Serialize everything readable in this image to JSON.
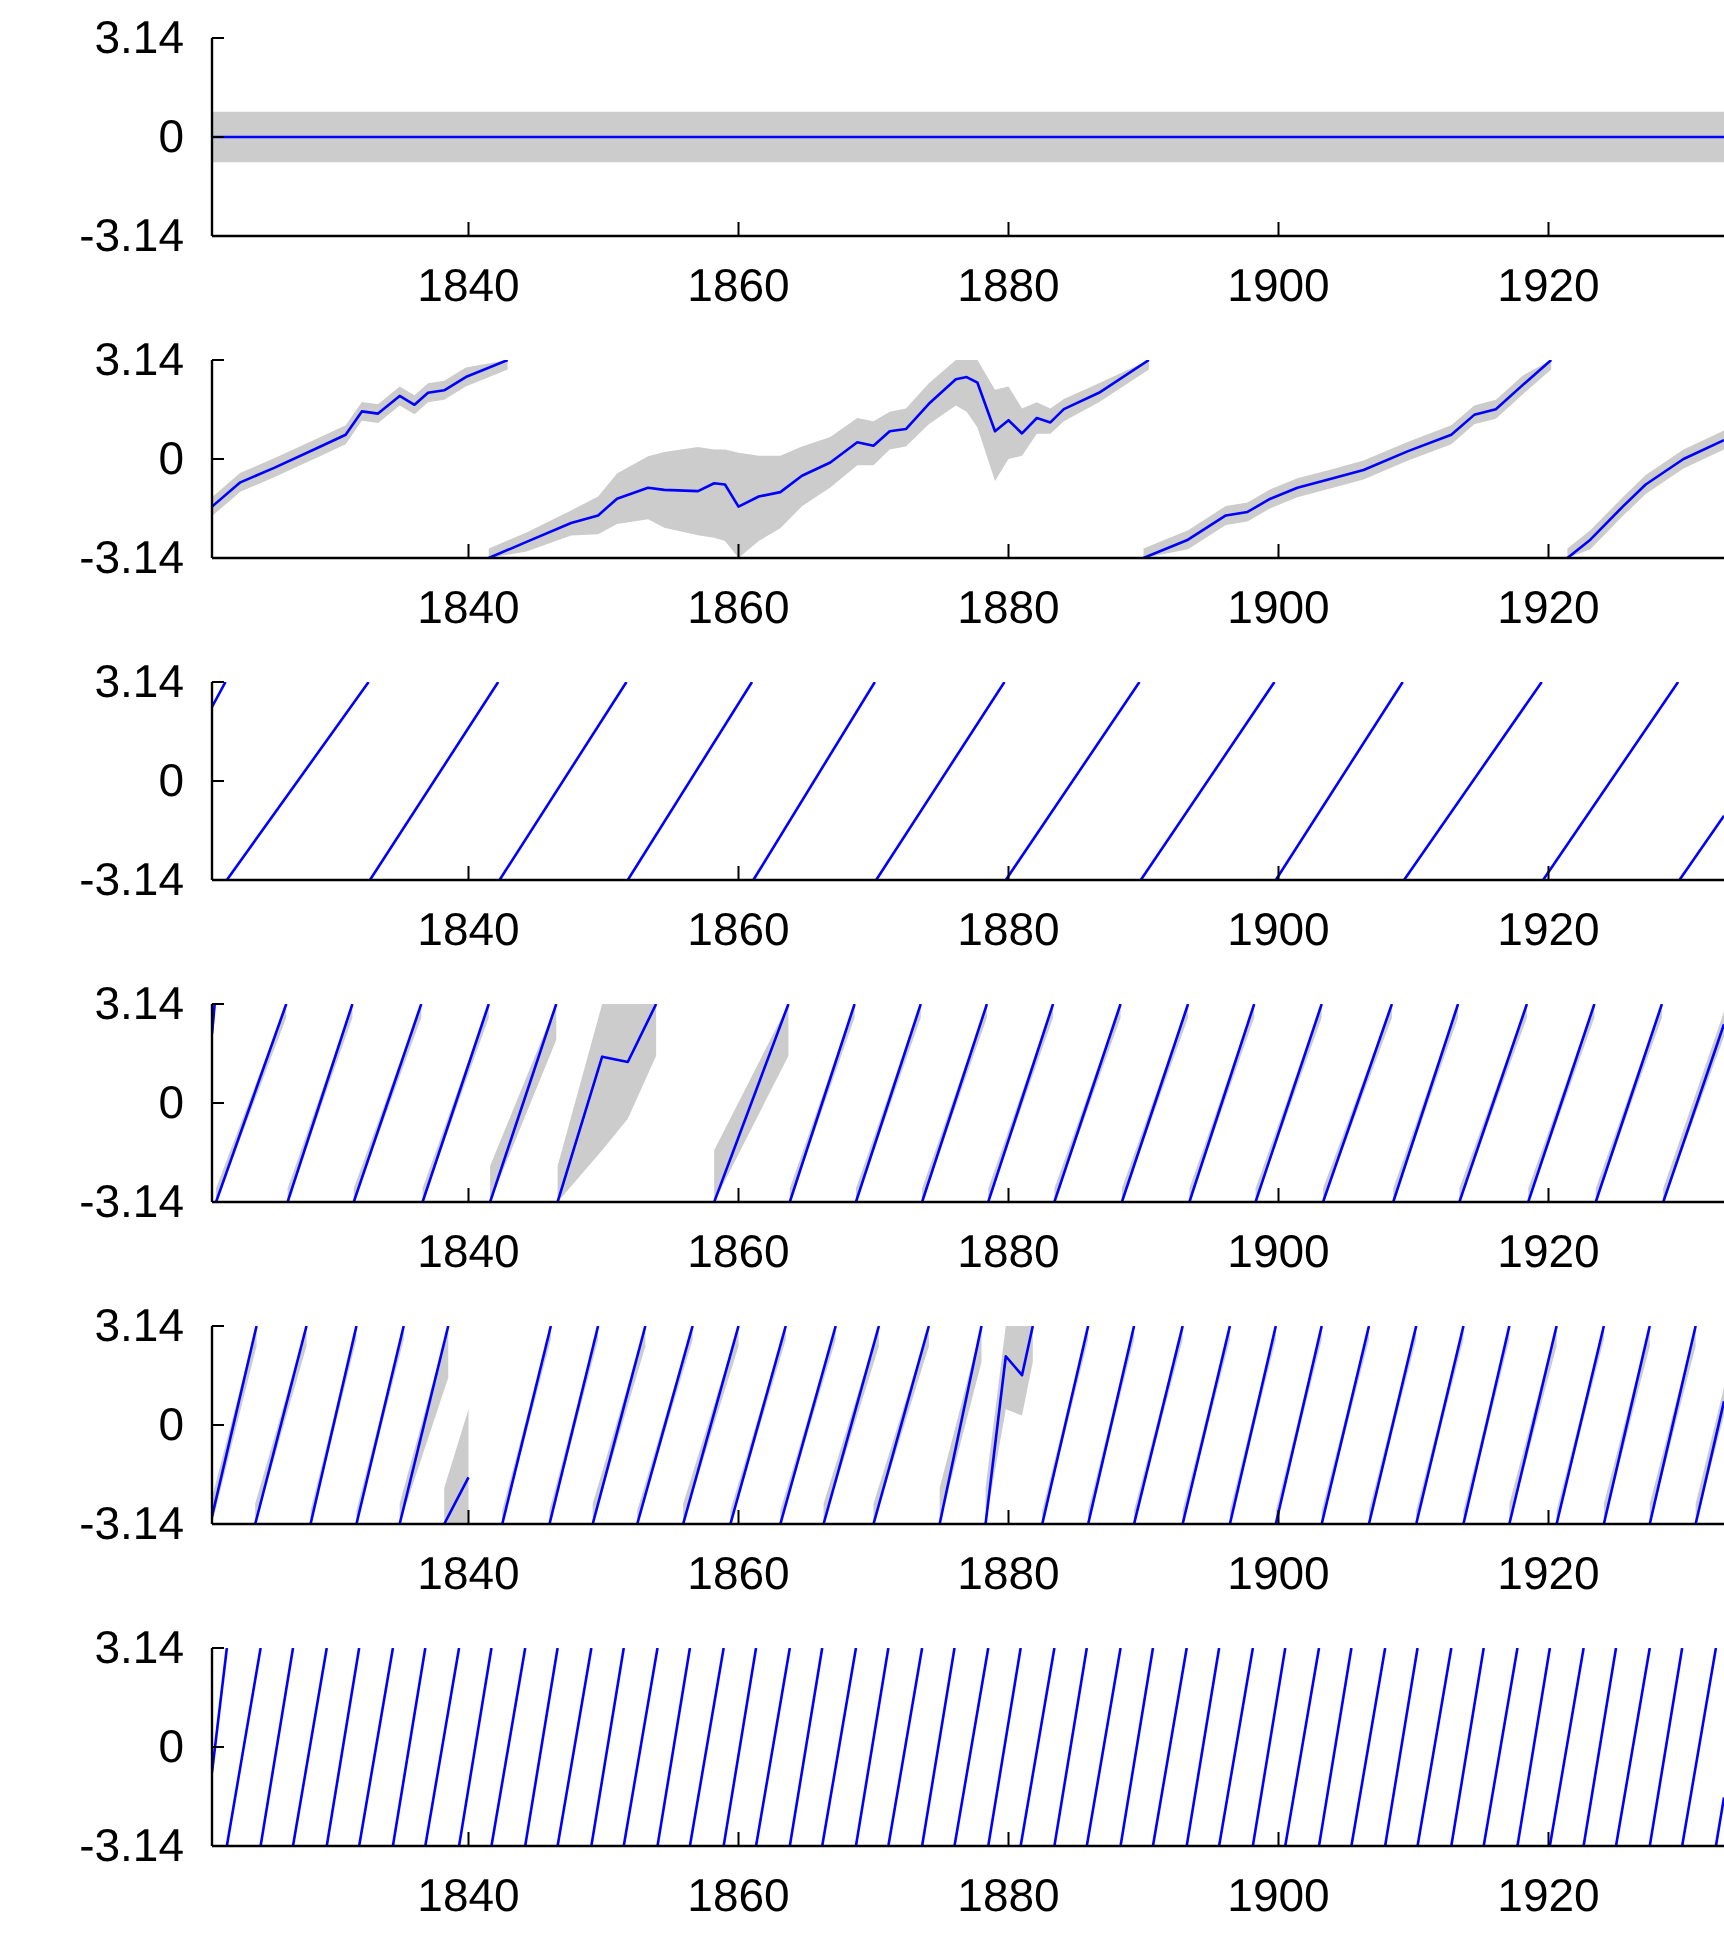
{
  "chart_data": [
    {
      "type": "line",
      "xlim": [
        1821,
        1933
      ],
      "xticks": [
        1840,
        1860,
        1880,
        1900,
        1920
      ],
      "ylim": [
        -3.14,
        3.14
      ],
      "yticks": [
        -3.14,
        0,
        3.14
      ],
      "series": [
        {
          "color": "#0000ff",
          "x": [
            1821,
            1933
          ],
          "values": [
            0,
            0
          ],
          "lower": [
            -0.8,
            -0.8
          ],
          "upper": [
            0.8,
            0.8
          ]
        }
      ]
    },
    {
      "type": "line",
      "xlim": [
        1821,
        1933
      ],
      "xticks": [
        1840,
        1860,
        1880,
        1900,
        1920
      ],
      "ylim": [
        -3.14,
        3.14
      ],
      "yticks": [
        -3.14,
        0,
        3.14
      ],
      "series": [
        {
          "color": "#0000ff",
          "x": [
            1821,
            1823.1,
            1825.6,
            1828.8,
            1830.9,
            1832.1,
            1833.3,
            1834.9,
            1836,
            1837,
            1838.2,
            1839.8,
            1842.9
          ],
          "values": [
            -1.51,
            -0.74,
            -0.28,
            0.35,
            0.77,
            1.51,
            1.44,
            2.0,
            1.72,
            2.1,
            2.18,
            2.6,
            3.14
          ],
          "lower": [
            -1.81,
            -1.04,
            -0.58,
            0.05,
            0.47,
            1.21,
            1.14,
            1.7,
            1.42,
            1.8,
            1.88,
            2.3,
            2.84
          ],
          "upper": [
            -1.21,
            -0.44,
            0.02,
            0.65,
            1.07,
            1.81,
            1.74,
            2.3,
            2.02,
            2.4,
            2.48,
            2.9,
            3.14
          ]
        },
        {
          "color": "#0000ff",
          "x": [
            1841.5,
            1844.3,
            1847.6,
            1849.6,
            1851.0,
            1853.3,
            1854.5,
            1857.0,
            1858.2,
            1859.0,
            1860.0,
            1861.5,
            1863.1,
            1864.7,
            1866.8,
            1868.8,
            1870.0,
            1871.2,
            1872.4,
            1874.1,
            1876.1,
            1876.9,
            1877.7,
            1879.0,
            1880.0,
            1881.0,
            1882.1,
            1883.1,
            1884.1,
            1886.7,
            1890.4
          ],
          "values": [
            -3.14,
            -2.63,
            -2.03,
            -1.79,
            -1.26,
            -0.91,
            -0.98,
            -1.02,
            -0.77,
            -0.81,
            -1.51,
            -1.19,
            -1.05,
            -0.53,
            -0.11,
            0.53,
            0.42,
            0.88,
            0.95,
            1.75,
            2.53,
            2.6,
            2.42,
            0.88,
            1.23,
            0.81,
            1.3,
            1.16,
            1.58,
            2.1,
            3.14
          ],
          "lower": [
            -3.14,
            -2.93,
            -2.43,
            -2.39,
            -2.06,
            -1.91,
            -2.18,
            -2.42,
            -2.5,
            -2.6,
            -3.14,
            -2.6,
            -2.2,
            -1.5,
            -0.9,
            -0.2,
            -0.2,
            0.3,
            0.4,
            1.1,
            1.7,
            1.5,
            1.0,
            -0.7,
            0.0,
            0.1,
            0.8,
            0.8,
            1.2,
            1.8,
            2.84
          ],
          "upper": [
            -2.84,
            -2.33,
            -1.63,
            -1.19,
            -0.46,
            0.09,
            0.22,
            0.38,
            0.3,
            0.3,
            0.2,
            0.1,
            0.1,
            0.4,
            0.7,
            1.3,
            1.2,
            1.5,
            1.6,
            2.4,
            3.14,
            3.14,
            3.14,
            2.2,
            2.3,
            1.6,
            1.8,
            1.6,
            1.9,
            2.4,
            3.14
          ]
        },
        {
          "color": "#0000ff",
          "x": [
            1890.0,
            1893.3,
            1896.1,
            1897.7,
            1899.4,
            1901.4,
            1903.9,
            1906.3,
            1909.6,
            1912.8,
            1914.5,
            1916.1,
            1918.1,
            1920.2
          ],
          "values": [
            -3.14,
            -2.56,
            -1.79,
            -1.68,
            -1.26,
            -0.91,
            -0.63,
            -0.35,
            0.25,
            0.77,
            1.4,
            1.58,
            2.35,
            3.14
          ],
          "lower": [
            -3.14,
            -2.86,
            -2.09,
            -1.98,
            -1.56,
            -1.21,
            -0.93,
            -0.65,
            -0.05,
            0.47,
            1.1,
            1.28,
            2.05,
            2.84
          ],
          "upper": [
            -2.84,
            -2.26,
            -1.49,
            -1.38,
            -0.96,
            -0.61,
            -0.33,
            -0.05,
            0.55,
            1.07,
            1.7,
            1.88,
            2.65,
            3.14
          ]
        },
        {
          "color": "#0000ff",
          "x": [
            1921.4,
            1923.1,
            1925.5,
            1927.2,
            1930.0,
            1933
          ],
          "values": [
            -3.14,
            -2.56,
            -1.51,
            -0.81,
            0,
            0.6
          ],
          "lower": [
            -3.14,
            -2.86,
            -1.81,
            -1.11,
            -0.3,
            0.3
          ],
          "upper": [
            -2.84,
            -2.26,
            -1.21,
            -0.51,
            0.3,
            0.9
          ]
        }
      ]
    },
    {
      "type": "line",
      "xlim": [
        1821,
        1933
      ],
      "xticks": [
        1840,
        1860,
        1880,
        1900,
        1920
      ],
      "ylim": [
        -3.14,
        3.14
      ],
      "yticks": [
        -3.14,
        0,
        3.14
      ],
      "series": [
        {
          "color": "#0000ff",
          "x": [
            1821,
            1822.0
          ],
          "values": [
            2.35,
            3.14
          ]
        },
        {
          "color": "#0000ff",
          "x": [
            1822.1,
            1832.6
          ],
          "values": [
            -3.14,
            3.14
          ]
        },
        {
          "color": "#0000ff",
          "x": [
            1832.7,
            1842.2
          ],
          "values": [
            -3.14,
            3.14
          ]
        },
        {
          "color": "#0000ff",
          "x": [
            1842.3,
            1851.7
          ],
          "values": [
            -3.14,
            3.14
          ]
        },
        {
          "color": "#0000ff",
          "x": [
            1851.8,
            1861.0
          ],
          "values": [
            -3.14,
            3.14
          ]
        },
        {
          "color": "#0000ff",
          "x": [
            1861.1,
            1870.1
          ],
          "values": [
            -3.14,
            3.14
          ]
        },
        {
          "color": "#0000ff",
          "x": [
            1870.2,
            1879.7
          ],
          "values": [
            -3.14,
            3.14
          ]
        },
        {
          "color": "#0000ff",
          "x": [
            1879.8,
            1889.7
          ],
          "values": [
            -3.14,
            3.14
          ]
        },
        {
          "color": "#0000ff",
          "x": [
            1889.8,
            1899.7
          ],
          "values": [
            -3.14,
            3.14
          ]
        },
        {
          "color": "#0000ff",
          "x": [
            1899.8,
            1909.2
          ],
          "values": [
            -3.14,
            3.14
          ]
        },
        {
          "color": "#0000ff",
          "x": [
            1909.3,
            1919.5
          ],
          "values": [
            -3.14,
            3.14
          ]
        },
        {
          "color": "#0000ff",
          "x": [
            1919.6,
            1929.6
          ],
          "values": [
            -3.14,
            3.14
          ]
        },
        {
          "color": "#0000ff",
          "x": [
            1929.7,
            1933
          ],
          "values": [
            -3.14,
            -1.1
          ]
        }
      ]
    },
    {
      "type": "line",
      "xlim": [
        1821,
        1933
      ],
      "xticks": [
        1840,
        1860,
        1880,
        1900,
        1920
      ],
      "ylim": [
        -3.14,
        3.14
      ],
      "yticks": [
        -3.14,
        0,
        3.14
      ],
      "series": [
        {
          "color": "#0000ff",
          "x": [
            1821,
            1821.2
          ],
          "values": [
            2.2,
            3.14
          ],
          "lower": [
            1.8,
            2.7
          ],
          "upper": [
            3.14,
            3.14
          ]
        },
        {
          "color": "#0000ff",
          "x": [
            1821.3,
            1826.5
          ],
          "values": [
            -3.14,
            3.14
          ],
          "lower": [
            -3.14,
            2.7
          ],
          "upper": [
            -2.7,
            3.14
          ]
        },
        {
          "color": "#0000ff",
          "x": [
            1826.6,
            1831.4
          ],
          "values": [
            -3.14,
            3.14
          ],
          "lower": [
            -3.14,
            2.7
          ],
          "upper": [
            -2.7,
            3.14
          ]
        },
        {
          "color": "#0000ff",
          "x": [
            1831.5,
            1836.5
          ],
          "values": [
            -3.14,
            3.14
          ],
          "lower": [
            -3.14,
            2.7
          ],
          "upper": [
            -2.7,
            3.14
          ]
        },
        {
          "color": "#0000ff",
          "x": [
            1836.6,
            1841.5
          ],
          "values": [
            -3.14,
            3.14
          ],
          "lower": [
            -3.14,
            2.7
          ],
          "upper": [
            -2.7,
            3.14
          ]
        },
        {
          "color": "#0000ff",
          "x": [
            1841.6,
            1846.5
          ],
          "values": [
            -3.14,
            3.14
          ],
          "lower": [
            -3.14,
            2.0
          ],
          "upper": [
            -2.0,
            3.14
          ]
        },
        {
          "color": "#0000ff",
          "x": [
            1846.6,
            1849.9,
            1851.8,
            1853.9
          ],
          "values": [
            -3.14,
            1.47,
            1.3,
            3.14
          ],
          "lower": [
            -3.14,
            -1.5,
            -0.5,
            1.5
          ],
          "upper": [
            -2.0,
            3.14,
            3.14,
            3.14
          ]
        },
        {
          "color": "#0000ff",
          "x": [
            1858.2,
            1863.7
          ],
          "values": [
            -3.14,
            3.14
          ],
          "lower": [
            -3.14,
            1.5
          ],
          "upper": [
            -1.5,
            3.14
          ]
        },
        {
          "color": "#0000ff",
          "x": [
            1863.8,
            1868.6
          ],
          "values": [
            -3.14,
            3.14
          ],
          "lower": [
            -3.14,
            2.7
          ],
          "upper": [
            -2.7,
            3.14
          ]
        },
        {
          "color": "#0000ff",
          "x": [
            1868.7,
            1873.5
          ],
          "values": [
            -3.14,
            3.14
          ],
          "lower": [
            -3.14,
            2.7
          ],
          "upper": [
            -2.7,
            3.14
          ]
        },
        {
          "color": "#0000ff",
          "x": [
            1873.6,
            1878.4
          ],
          "values": [
            -3.14,
            3.14
          ],
          "lower": [
            -3.14,
            2.7
          ],
          "upper": [
            -2.7,
            3.14
          ]
        },
        {
          "color": "#0000ff",
          "x": [
            1878.5,
            1883.3
          ],
          "values": [
            -3.14,
            3.14
          ],
          "lower": [
            -3.14,
            2.7
          ],
          "upper": [
            -2.7,
            3.14
          ]
        },
        {
          "color": "#0000ff",
          "x": [
            1883.4,
            1888.3
          ],
          "values": [
            -3.14,
            3.14
          ],
          "lower": [
            -3.14,
            2.7
          ],
          "upper": [
            -2.7,
            3.14
          ]
        },
        {
          "color": "#0000ff",
          "x": [
            1888.4,
            1893.3
          ],
          "values": [
            -3.14,
            3.14
          ],
          "lower": [
            -3.14,
            2.7
          ],
          "upper": [
            -2.7,
            3.14
          ]
        },
        {
          "color": "#0000ff",
          "x": [
            1893.4,
            1898.2
          ],
          "values": [
            -3.14,
            3.14
          ],
          "lower": [
            -3.14,
            2.7
          ],
          "upper": [
            -2.7,
            3.14
          ]
        },
        {
          "color": "#0000ff",
          "x": [
            1898.3,
            1903.2
          ],
          "values": [
            -3.14,
            3.14
          ],
          "lower": [
            -3.14,
            2.7
          ],
          "upper": [
            -2.7,
            3.14
          ]
        },
        {
          "color": "#0000ff",
          "x": [
            1903.3,
            1908.4
          ],
          "values": [
            -3.14,
            3.14
          ],
          "lower": [
            -3.14,
            2.7
          ],
          "upper": [
            -2.7,
            3.14
          ]
        },
        {
          "color": "#0000ff",
          "x": [
            1908.5,
            1913.3
          ],
          "values": [
            -3.14,
            3.14
          ],
          "lower": [
            -3.14,
            2.7
          ],
          "upper": [
            -2.7,
            3.14
          ]
        },
        {
          "color": "#0000ff",
          "x": [
            1913.4,
            1918.4
          ],
          "values": [
            -3.14,
            3.14
          ],
          "lower": [
            -3.14,
            2.7
          ],
          "upper": [
            -2.7,
            3.14
          ]
        },
        {
          "color": "#0000ff",
          "x": [
            1918.5,
            1923.4
          ],
          "values": [
            -3.14,
            3.14
          ],
          "lower": [
            -3.14,
            2.7
          ],
          "upper": [
            -2.7,
            3.14
          ]
        },
        {
          "color": "#0000ff",
          "x": [
            1923.5,
            1928.4
          ],
          "values": [
            -3.14,
            3.14
          ],
          "lower": [
            -3.14,
            2.7
          ],
          "upper": [
            -2.7,
            3.14
          ]
        },
        {
          "color": "#0000ff",
          "x": [
            1928.5,
            1933
          ],
          "values": [
            -3.14,
            2.5
          ],
          "lower": [
            -3.14,
            2.1
          ],
          "upper": [
            -2.7,
            2.9
          ]
        }
      ]
    },
    {
      "type": "line",
      "xlim": [
        1821,
        1933
      ],
      "xticks": [
        1840,
        1860,
        1880,
        1900,
        1920
      ],
      "ylim": [
        -3.14,
        3.14
      ],
      "yticks": [
        -3.14,
        0,
        3.14
      ],
      "series": [
        {
          "color": "#0000ff",
          "x": [
            1821,
            1824.3
          ],
          "values": [
            -2.9,
            3.14
          ],
          "lower": [
            -3.14,
            2.5
          ],
          "upper": [
            -2.3,
            3.14
          ]
        },
        {
          "color": "#0000ff",
          "x": [
            1824.2,
            1828.0
          ],
          "values": [
            -3.14,
            3.14
          ],
          "lower": [
            -3.14,
            2.5
          ],
          "upper": [
            -2.5,
            3.14
          ]
        },
        {
          "color": "#0000ff",
          "x": [
            1828.3,
            1831.7
          ],
          "values": [
            -3.14,
            3.14
          ],
          "lower": [
            -3.14,
            2.7
          ],
          "upper": [
            -2.7,
            3.14
          ]
        },
        {
          "color": "#0000ff",
          "x": [
            1831.7,
            1835.2
          ],
          "values": [
            -3.14,
            3.14
          ],
          "lower": [
            -3.14,
            2.7
          ],
          "upper": [
            -2.7,
            3.14
          ]
        },
        {
          "color": "#0000ff",
          "x": [
            1834.9,
            1838.5
          ],
          "values": [
            -3.14,
            3.14
          ],
          "lower": [
            -3.14,
            1.5
          ],
          "upper": [
            -2.5,
            3.14
          ]
        },
        {
          "color": "#0000ff",
          "x": [
            1838.2,
            1840.0
          ],
          "values": [
            -3.14,
            -1.66
          ],
          "lower": [
            -3.14,
            -3.14
          ],
          "upper": [
            -2.0,
            0.5
          ]
        },
        {
          "color": "#0000ff",
          "x": [
            1842.5,
            1846.1
          ],
          "values": [
            -3.14,
            3.14
          ],
          "lower": [
            -3.14,
            2.7
          ],
          "upper": [
            -2.7,
            3.14
          ]
        },
        {
          "color": "#0000ff",
          "x": [
            1846.0,
            1849.6
          ],
          "values": [
            -3.14,
            3.14
          ],
          "lower": [
            -3.14,
            2.7
          ],
          "upper": [
            -2.7,
            3.14
          ]
        },
        {
          "color": "#0000ff",
          "x": [
            1849.2,
            1853.1
          ],
          "values": [
            -3.14,
            3.14
          ],
          "lower": [
            -3.14,
            2.5
          ],
          "upper": [
            -2.5,
            3.14
          ]
        },
        {
          "color": "#0000ff",
          "x": [
            1852.5,
            1856.6
          ],
          "values": [
            -3.14,
            3.14
          ],
          "lower": [
            -3.14,
            2.7
          ],
          "upper": [
            -2.7,
            3.14
          ]
        },
        {
          "color": "#0000ff",
          "x": [
            1855.9,
            1860.0
          ],
          "values": [
            -3.14,
            3.14
          ],
          "lower": [
            -3.14,
            2.5
          ],
          "upper": [
            -2.5,
            3.14
          ]
        },
        {
          "color": "#0000ff",
          "x": [
            1859.4,
            1863.5
          ],
          "values": [
            -3.14,
            3.14
          ],
          "lower": [
            -3.14,
            2.7
          ],
          "upper": [
            -2.7,
            3.14
          ]
        },
        {
          "color": "#0000ff",
          "x": [
            1863.1,
            1867.2
          ],
          "values": [
            -3.14,
            3.14
          ],
          "lower": [
            -3.14,
            2.7
          ],
          "upper": [
            -2.7,
            3.14
          ]
        },
        {
          "color": "#0000ff",
          "x": [
            1866.3,
            1870.4
          ],
          "values": [
            -3.14,
            3.14
          ],
          "lower": [
            -3.14,
            2.5
          ],
          "upper": [
            -2.5,
            3.14
          ]
        },
        {
          "color": "#0000ff",
          "x": [
            1870.0,
            1874.1
          ],
          "values": [
            -3.14,
            3.14
          ],
          "lower": [
            -3.14,
            2.5
          ],
          "upper": [
            -2.5,
            3.14
          ]
        },
        {
          "color": "#0000ff",
          "x": [
            1874.9,
            1878.0
          ],
          "values": [
            -3.14,
            3.14
          ],
          "lower": [
            -3.14,
            2.0
          ],
          "upper": [
            -2.0,
            3.14
          ]
        },
        {
          "color": "#0000ff",
          "x": [
            1878.3,
            1879.8,
            1881.0,
            1881.8
          ],
          "values": [
            -3.14,
            2.18,
            1.58,
            3.14
          ],
          "lower": [
            -3.14,
            0.5,
            0.3,
            2.0
          ],
          "upper": [
            -2.0,
            3.14,
            3.14,
            3.14
          ]
        },
        {
          "color": "#0000ff",
          "x": [
            1882.5,
            1885.9
          ],
          "values": [
            -3.14,
            3.14
          ],
          "lower": [
            -3.14,
            2.7
          ],
          "upper": [
            -2.7,
            3.14
          ]
        },
        {
          "color": "#0000ff",
          "x": [
            1885.9,
            1889.3
          ],
          "values": [
            -3.14,
            3.14
          ],
          "lower": [
            -3.14,
            2.7
          ],
          "upper": [
            -2.7,
            3.14
          ]
        },
        {
          "color": "#0000ff",
          "x": [
            1889.3,
            1892.9
          ],
          "values": [
            -3.14,
            3.14
          ],
          "lower": [
            -3.14,
            2.7
          ],
          "upper": [
            -2.7,
            3.14
          ]
        },
        {
          "color": "#0000ff",
          "x": [
            1892.9,
            1896.4
          ],
          "values": [
            -3.14,
            3.14
          ],
          "lower": [
            -3.14,
            2.7
          ],
          "upper": [
            -2.7,
            3.14
          ]
        },
        {
          "color": "#0000ff",
          "x": [
            1896.4,
            1899.8
          ],
          "values": [
            -3.14,
            3.14
          ],
          "lower": [
            -3.14,
            2.7
          ],
          "upper": [
            -2.7,
            3.14
          ]
        },
        {
          "color": "#0000ff",
          "x": [
            1899.8,
            1903.2
          ],
          "values": [
            -3.14,
            3.14
          ],
          "lower": [
            -3.14,
            2.7
          ],
          "upper": [
            -2.7,
            3.14
          ]
        },
        {
          "color": "#0000ff",
          "x": [
            1903.2,
            1906.7
          ],
          "values": [
            -3.14,
            3.14
          ],
          "lower": [
            -3.14,
            2.7
          ],
          "upper": [
            -2.7,
            3.14
          ]
        },
        {
          "color": "#0000ff",
          "x": [
            1906.7,
            1910.2
          ],
          "values": [
            -3.14,
            3.14
          ],
          "lower": [
            -3.14,
            2.7
          ],
          "upper": [
            -2.7,
            3.14
          ]
        },
        {
          "color": "#0000ff",
          "x": [
            1910.2,
            1913.7
          ],
          "values": [
            -3.14,
            3.14
          ],
          "lower": [
            -3.14,
            2.7
          ],
          "upper": [
            -2.7,
            3.14
          ]
        },
        {
          "color": "#0000ff",
          "x": [
            1913.7,
            1917.1
          ],
          "values": [
            -3.14,
            3.14
          ],
          "lower": [
            -3.14,
            2.7
          ],
          "upper": [
            -2.7,
            3.14
          ]
        },
        {
          "color": "#0000ff",
          "x": [
            1917.1,
            1920.6
          ],
          "values": [
            -3.14,
            3.14
          ],
          "lower": [
            -3.14,
            2.5
          ],
          "upper": [
            -2.5,
            3.14
          ]
        },
        {
          "color": "#0000ff",
          "x": [
            1920.6,
            1924.1
          ],
          "values": [
            -3.14,
            3.14
          ],
          "lower": [
            -3.14,
            2.7
          ],
          "upper": [
            -2.7,
            3.14
          ]
        },
        {
          "color": "#0000ff",
          "x": [
            1924.1,
            1927.5
          ],
          "values": [
            -3.14,
            3.14
          ],
          "lower": [
            -3.14,
            2.5
          ],
          "upper": [
            -2.5,
            3.14
          ]
        },
        {
          "color": "#0000ff",
          "x": [
            1927.5,
            1930.9
          ],
          "values": [
            -3.14,
            3.14
          ],
          "lower": [
            -3.14,
            2.5
          ],
          "upper": [
            -2.5,
            3.14
          ]
        },
        {
          "color": "#0000ff",
          "x": [
            1930.9,
            1933
          ],
          "values": [
            -3.14,
            0.75
          ],
          "lower": [
            -3.14,
            0.3
          ],
          "upper": [
            -2.5,
            1.2
          ]
        }
      ]
    },
    {
      "type": "line",
      "xlim": [
        1821,
        1933
      ],
      "xticks": [
        1840,
        1860,
        1880,
        1900,
        1920
      ],
      "ylim": [
        -3.14,
        3.14
      ],
      "yticks": [
        -3.14,
        0,
        3.14
      ],
      "series": [
        {
          "color": "#0000ff",
          "x": [
            1821,
            1822.1
          ],
          "values": [
            -0.8,
            3.14
          ]
        },
        {
          "color": "#0000ff",
          "x": [
            1822.1,
            1824.6
          ],
          "values": [
            -3.14,
            3.14
          ]
        },
        {
          "color": "#0000ff",
          "x": [
            1824.6,
            1827.0
          ],
          "values": [
            -3.14,
            3.14
          ]
        },
        {
          "color": "#0000ff",
          "x": [
            1827.0,
            1829.5
          ],
          "values": [
            -3.14,
            3.14
          ]
        },
        {
          "color": "#0000ff",
          "x": [
            1829.5,
            1831.9
          ],
          "values": [
            -3.14,
            3.14
          ]
        },
        {
          "color": "#0000ff",
          "x": [
            1831.9,
            1834.4
          ],
          "values": [
            -3.14,
            3.14
          ]
        },
        {
          "color": "#0000ff",
          "x": [
            1834.4,
            1836.8
          ],
          "values": [
            -3.14,
            3.14
          ]
        },
        {
          "color": "#0000ff",
          "x": [
            1836.8,
            1839.3
          ],
          "values": [
            -3.14,
            3.14
          ]
        },
        {
          "color": "#0000ff",
          "x": [
            1839.3,
            1841.7
          ],
          "values": [
            -3.14,
            3.14
          ]
        },
        {
          "color": "#0000ff",
          "x": [
            1841.7,
            1844.2
          ],
          "values": [
            -3.14,
            3.14
          ]
        },
        {
          "color": "#0000ff",
          "x": [
            1844.2,
            1846.6
          ],
          "values": [
            -3.14,
            3.14
          ]
        },
        {
          "color": "#0000ff",
          "x": [
            1846.6,
            1849.1
          ],
          "values": [
            -3.14,
            3.14
          ]
        },
        {
          "color": "#0000ff",
          "x": [
            1849.1,
            1851.5
          ],
          "values": [
            -3.14,
            3.14
          ]
        },
        {
          "color": "#0000ff",
          "x": [
            1851.5,
            1854.0
          ],
          "values": [
            -3.14,
            3.14
          ]
        },
        {
          "color": "#0000ff",
          "x": [
            1854.0,
            1856.4
          ],
          "values": [
            -3.14,
            3.14
          ]
        },
        {
          "color": "#0000ff",
          "x": [
            1856.4,
            1858.9
          ],
          "values": [
            -3.14,
            3.14
          ]
        },
        {
          "color": "#0000ff",
          "x": [
            1858.9,
            1861.3
          ],
          "values": [
            -3.14,
            3.14
          ]
        },
        {
          "color": "#0000ff",
          "x": [
            1861.3,
            1863.8
          ],
          "values": [
            -3.14,
            3.14
          ]
        },
        {
          "color": "#0000ff",
          "x": [
            1863.8,
            1866.2
          ],
          "values": [
            -3.14,
            3.14
          ]
        },
        {
          "color": "#0000ff",
          "x": [
            1866.2,
            1868.7
          ],
          "values": [
            -3.14,
            3.14
          ]
        },
        {
          "color": "#0000ff",
          "x": [
            1868.7,
            1871.1
          ],
          "values": [
            -3.14,
            3.14
          ]
        },
        {
          "color": "#0000ff",
          "x": [
            1871.1,
            1873.6
          ],
          "values": [
            -3.14,
            3.14
          ]
        },
        {
          "color": "#0000ff",
          "x": [
            1873.6,
            1876.0
          ],
          "values": [
            -3.14,
            3.14
          ]
        },
        {
          "color": "#0000ff",
          "x": [
            1876.0,
            1878.5
          ],
          "values": [
            -3.14,
            3.14
          ]
        },
        {
          "color": "#0000ff",
          "x": [
            1878.5,
            1880.9
          ],
          "values": [
            -3.14,
            3.14
          ]
        },
        {
          "color": "#0000ff",
          "x": [
            1880.9,
            1883.4
          ],
          "values": [
            -3.14,
            3.14
          ]
        },
        {
          "color": "#0000ff",
          "x": [
            1883.4,
            1885.8
          ],
          "values": [
            -3.14,
            3.14
          ]
        },
        {
          "color": "#0000ff",
          "x": [
            1885.8,
            1888.3
          ],
          "values": [
            -3.14,
            3.14
          ]
        },
        {
          "color": "#0000ff",
          "x": [
            1888.3,
            1890.7
          ],
          "values": [
            -3.14,
            3.14
          ]
        },
        {
          "color": "#0000ff",
          "x": [
            1890.7,
            1893.2
          ],
          "values": [
            -3.14,
            3.14
          ]
        },
        {
          "color": "#0000ff",
          "x": [
            1893.2,
            1895.6
          ],
          "values": [
            -3.14,
            3.14
          ]
        },
        {
          "color": "#0000ff",
          "x": [
            1895.6,
            1898.1
          ],
          "values": [
            -3.14,
            3.14
          ]
        },
        {
          "color": "#0000ff",
          "x": [
            1898.1,
            1900.5
          ],
          "values": [
            -3.14,
            3.14
          ]
        },
        {
          "color": "#0000ff",
          "x": [
            1900.5,
            1903.0
          ],
          "values": [
            -3.14,
            3.14
          ]
        },
        {
          "color": "#0000ff",
          "x": [
            1903.0,
            1905.4
          ],
          "values": [
            -3.14,
            3.14
          ]
        },
        {
          "color": "#0000ff",
          "x": [
            1905.4,
            1907.9
          ],
          "values": [
            -3.14,
            3.14
          ]
        },
        {
          "color": "#0000ff",
          "x": [
            1907.9,
            1910.3
          ],
          "values": [
            -3.14,
            3.14
          ]
        },
        {
          "color": "#0000ff",
          "x": [
            1910.3,
            1912.8
          ],
          "values": [
            -3.14,
            3.14
          ]
        },
        {
          "color": "#0000ff",
          "x": [
            1912.8,
            1915.2
          ],
          "values": [
            -3.14,
            3.14
          ]
        },
        {
          "color": "#0000ff",
          "x": [
            1915.2,
            1917.7
          ],
          "values": [
            -3.14,
            3.14
          ]
        },
        {
          "color": "#0000ff",
          "x": [
            1917.7,
            1920.1
          ],
          "values": [
            -3.14,
            3.14
          ]
        },
        {
          "color": "#0000ff",
          "x": [
            1920.1,
            1922.6
          ],
          "values": [
            -3.14,
            3.14
          ]
        },
        {
          "color": "#0000ff",
          "x": [
            1922.6,
            1925.0
          ],
          "values": [
            -3.14,
            3.14
          ]
        },
        {
          "color": "#0000ff",
          "x": [
            1925.0,
            1927.5
          ],
          "values": [
            -3.14,
            3.14
          ]
        },
        {
          "color": "#0000ff",
          "x": [
            1927.5,
            1929.9
          ],
          "values": [
            -3.14,
            3.14
          ]
        },
        {
          "color": "#0000ff",
          "x": [
            1929.9,
            1932.4
          ],
          "values": [
            -3.14,
            3.14
          ]
        },
        {
          "color": "#0000ff",
          "x": [
            1932.4,
            1933
          ],
          "values": [
            -3.14,
            -1.6
          ]
        }
      ]
    }
  ]
}
